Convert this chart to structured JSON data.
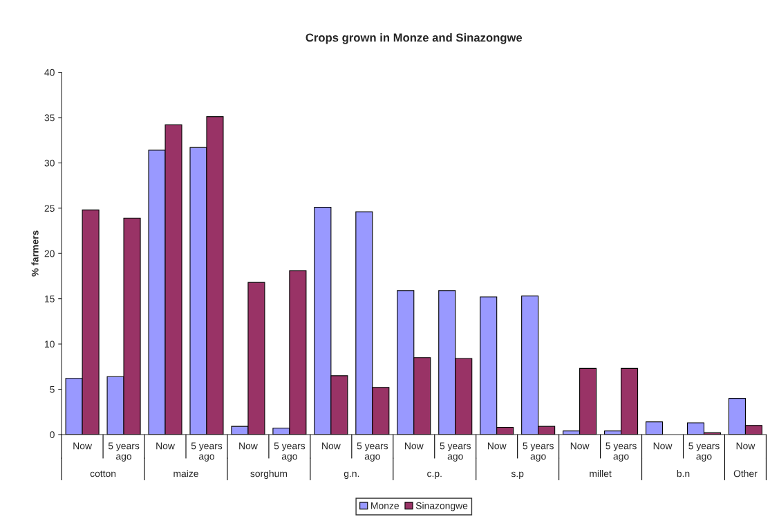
{
  "chart_data": {
    "type": "bar",
    "title": "Crops grown in Monze and Sinazongwe",
    "ylabel": "% farmers",
    "categories": [
      "Now",
      "5 years\nago",
      "Now",
      "5 years\nago",
      "Now",
      "5 years\nago",
      "Now",
      "5 years\nago",
      "Now",
      "5 years\nago",
      "Now",
      "5 years\nago",
      "Now",
      "5 years\nago",
      "Now",
      "5 years\nago",
      "Now"
    ],
    "annotations": [
      "cotton",
      "maize",
      "sorghum",
      "g.n.",
      "c.p.",
      "s.p",
      "millet",
      "b.n",
      "Other"
    ],
    "series": [
      {
        "name": "Monze",
        "color": "#9999ff",
        "values": [
          6.2,
          6.4,
          31.4,
          31.7,
          0.9,
          0.7,
          25.1,
          24.6,
          15.9,
          15.9,
          15.2,
          15.3,
          0.4,
          0.4,
          1.4,
          1.3,
          4.0
        ]
      },
      {
        "name": "Sinazongwe",
        "color": "#993366",
        "values": [
          24.8,
          23.9,
          34.2,
          35.1,
          16.8,
          18.1,
          6.5,
          5.2,
          8.5,
          8.4,
          0.8,
          0.9,
          7.3,
          7.3,
          null,
          0.2,
          1.0
        ]
      }
    ],
    "ylim": [
      0,
      40
    ],
    "yticks": [
      0,
      5,
      10,
      15,
      20,
      25,
      30,
      35,
      40
    ],
    "grid": false,
    "legend": "bottom"
  }
}
